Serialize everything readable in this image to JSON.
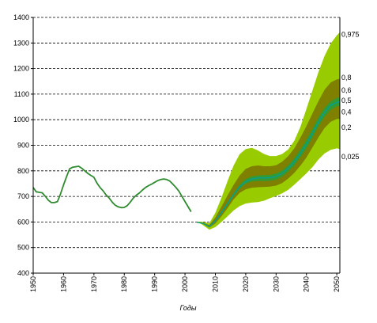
{
  "chart_data": {
    "type": "area",
    "title": "",
    "xlabel": "Годы",
    "ylabel": "",
    "xlim": [
      1950,
      2051
    ],
    "ylim": [
      400,
      1400
    ],
    "xticks": [
      1950,
      1960,
      1970,
      1980,
      1990,
      2000,
      2010,
      2020,
      2030,
      2040,
      2050
    ],
    "yticks": [
      400,
      500,
      600,
      700,
      800,
      900,
      1000,
      1100,
      1200,
      1300,
      1400
    ],
    "grid": "horizontal dashed",
    "colors": {
      "observed": "#2e8b2e",
      "band_025_975": "#99cc00",
      "band_02_08": "#808000",
      "band_04_06": "#339933",
      "median": "#00a0a0"
    },
    "observed": {
      "x": [
        1950,
        1951,
        1952,
        1953,
        1954,
        1955,
        1956,
        1957,
        1958,
        1959,
        1960,
        1961,
        1962,
        1963,
        1964,
        1965,
        1966,
        1967,
        1968,
        1969,
        1970,
        1971,
        1972,
        1973,
        1974,
        1975,
        1976,
        1977,
        1978,
        1979,
        1980,
        1981,
        1982,
        1983,
        1984,
        1985,
        1986,
        1987,
        1988,
        1989,
        1990,
        1991,
        1992,
        1993,
        1994,
        1995,
        1996,
        1997,
        1998,
        1999,
        2000,
        2001,
        2002
      ],
      "y": [
        735,
        718,
        716,
        714,
        700,
        685,
        676,
        676,
        680,
        710,
        745,
        778,
        808,
        814,
        816,
        818,
        810,
        800,
        790,
        782,
        775,
        752,
        735,
        722,
        706,
        694,
        678,
        666,
        659,
        656,
        657,
        664,
        678,
        694,
        705,
        714,
        725,
        735,
        742,
        748,
        755,
        762,
        766,
        768,
        766,
        760,
        748,
        735,
        720,
        700,
        680,
        660,
        640
      ]
    },
    "quantiles": {
      "x": [
        2004,
        2006,
        2008,
        2010,
        2012,
        2014,
        2016,
        2018,
        2020,
        2022,
        2024,
        2026,
        2028,
        2030,
        2032,
        2034,
        2036,
        2038,
        2040,
        2042,
        2044,
        2046,
        2048,
        2050,
        2051
      ],
      "q025": [
        602,
        587,
        570,
        580,
        600,
        622,
        645,
        662,
        672,
        676,
        678,
        683,
        693,
        702,
        712,
        726,
        746,
        768,
        790,
        815,
        845,
        868,
        882,
        888,
        885
      ],
      "q2": [
        600,
        592,
        578,
        594,
        622,
        654,
        688,
        714,
        728,
        734,
        736,
        737,
        738,
        742,
        752,
        770,
        792,
        820,
        852,
        892,
        932,
        968,
        992,
        1003,
        1003
      ],
      "q4": [
        598,
        593,
        580,
        600,
        632,
        666,
        700,
        730,
        750,
        758,
        760,
        760,
        761,
        765,
        778,
        797,
        821,
        853,
        888,
        930,
        975,
        1012,
        1038,
        1052,
        1053
      ],
      "q5": [
        598,
        594,
        582,
        604,
        637,
        672,
        707,
        738,
        758,
        768,
        772,
        772,
        773,
        778,
        790,
        810,
        836,
        868,
        905,
        948,
        992,
        1030,
        1057,
        1068,
        1070
      ],
      "q6": [
        598,
        595,
        584,
        607,
        641,
        677,
        713,
        745,
        768,
        778,
        782,
        783,
        784,
        790,
        802,
        822,
        850,
        884,
        922,
        965,
        1010,
        1047,
        1072,
        1085,
        1088
      ],
      "q8": [
        600,
        597,
        588,
        618,
        660,
        704,
        745,
        782,
        808,
        818,
        821,
        818,
        818,
        822,
        836,
        858,
        888,
        930,
        975,
        1025,
        1074,
        1118,
        1146,
        1158,
        1160
      ],
      "q975": [
        602,
        600,
        595,
        636,
        695,
        760,
        820,
        865,
        885,
        890,
        880,
        866,
        858,
        858,
        866,
        884,
        918,
        972,
        1042,
        1115,
        1188,
        1250,
        1298,
        1330,
        1342
      ]
    },
    "quantile_labels": [
      {
        "text": "0,975",
        "y": 1333
      },
      {
        "text": "0,8",
        "y": 1165
      },
      {
        "text": "0,6",
        "y": 1115
      },
      {
        "text": "0,5",
        "y": 1075
      },
      {
        "text": "0,4",
        "y": 1030
      },
      {
        "text": "0,2",
        "y": 970
      },
      {
        "text": "0,025",
        "y": 855
      }
    ]
  }
}
